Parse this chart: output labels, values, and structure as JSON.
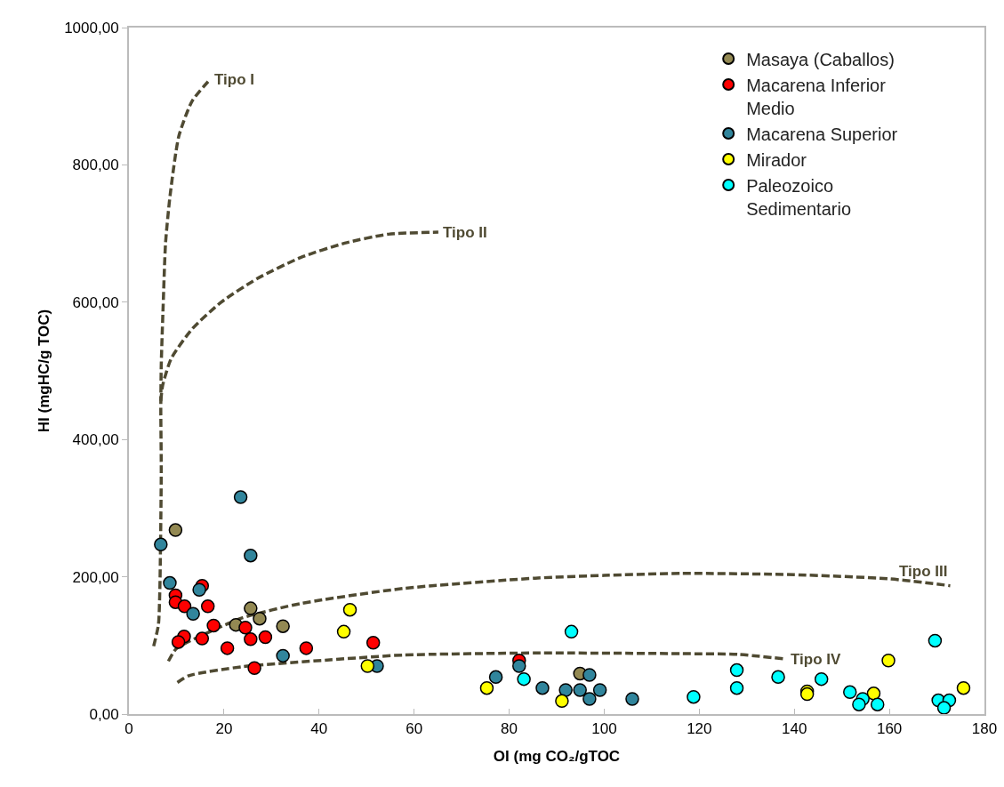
{
  "chart_data": {
    "type": "scatter",
    "xlabel": "OI (mg CO₂/gTOC",
    "ylabel": "HI (mgHC/g TOC)",
    "xlim": [
      0,
      180
    ],
    "ylim": [
      0,
      1000
    ],
    "xticks": [
      0,
      20,
      40,
      60,
      80,
      100,
      120,
      140,
      160,
      180
    ],
    "yticks": [
      {
        "value": 0,
        "label": "0,00"
      },
      {
        "value": 200,
        "label": "200,00"
      },
      {
        "value": 400,
        "label": "400,00"
      },
      {
        "value": 600,
        "label": "600,00"
      },
      {
        "value": 800,
        "label": "800,00"
      },
      {
        "value": 1000,
        "label": "1000,00"
      }
    ],
    "grid": false,
    "legend": "top right",
    "marker": "circle",
    "series": [
      {
        "name": "Masaya (Caballos)",
        "color": "#938953",
        "x": [
          9.8,
          25.6,
          27.5,
          22.5,
          32.4,
          94.9
        ],
        "values": [
          268,
          154,
          139,
          130,
          128,
          59
        ]
      },
      {
        "name": "Macarena Inferior Medio",
        "color": "#ff0000",
        "x": [
          15.4,
          9.8,
          9.8,
          11.7,
          16.6,
          17.8,
          24.5,
          28.7,
          25.6,
          11.6,
          10.4,
          15.4,
          20.7,
          37.3,
          51.4,
          26.4,
          82.1
        ],
        "values": [
          187,
          173,
          163,
          157,
          157,
          129,
          126,
          112,
          109,
          113,
          105,
          110,
          96,
          96,
          104,
          67,
          78
        ]
      },
      {
        "name": "Macarena Superior",
        "color": "#31859c",
        "x": [
          23.5,
          6.7,
          25.6,
          8.6,
          14.8,
          13.5,
          32.4,
          52.2,
          82.1,
          77.2,
          87,
          91.9,
          94.9,
          96.9,
          99.1,
          96.9,
          105.9
        ],
        "values": [
          316,
          247,
          231,
          191,
          181,
          146,
          85,
          70,
          70,
          54,
          38,
          35,
          35,
          57,
          35,
          22,
          22
        ]
      },
      {
        "name": "Mirador",
        "color": "#ffff00",
        "x": [
          46.5,
          45.2,
          50.2,
          75.3,
          91.1,
          142.7,
          142.7,
          159.8,
          156.7,
          175.6
        ],
        "values": [
          152,
          120,
          70,
          38,
          19,
          33,
          29,
          78,
          30,
          38
        ]
      },
      {
        "name": "Paleozoico Sedimentario",
        "color": "#00ffff",
        "x": [
          93.1,
          83.1,
          118.8,
          127.9,
          127.9,
          136.6,
          145.7,
          151.7,
          154.4,
          153.6,
          157.5,
          169.6,
          170.3,
          172.6,
          171.5
        ],
        "values": [
          120,
          51,
          25,
          64,
          38,
          54,
          51,
          32,
          22,
          14,
          14,
          107,
          20,
          20,
          9
        ]
      },
      {
        "type": "line",
        "name": "Tipo I",
        "color": "#4f4a32",
        "line_style": "dashed",
        "marker": "none",
        "x": [
          5.2,
          6.2,
          6.5,
          6.8,
          6.7,
          6.8,
          7.2,
          7.7,
          8.65,
          10.5,
          13.3,
          17.0
        ],
        "values": [
          99,
          130,
          181,
          354,
          444,
          509,
          595,
          686,
          755,
          842,
          893,
          924
        ]
      },
      {
        "type": "line",
        "name": "Tipo II",
        "color": "#4f4a32",
        "line_style": "dashed",
        "marker": "none",
        "x": [
          6.7,
          7.1,
          8.9,
          13.3,
          19.4,
          26.9,
          36.1,
          45.4,
          54.6,
          65.1
        ],
        "values": [
          456,
          479,
          518,
          561,
          600,
          634,
          665,
          686,
          699,
          702
        ]
      },
      {
        "type": "line",
        "name": "Tipo III",
        "color": "#4f4a32",
        "line_style": "dashed",
        "marker": "none",
        "x": [
          8.3,
          9.9,
          14.5,
          23.8,
          36.1,
          57.7,
          85.5,
          100,
          116.4,
          140,
          160,
          172.8
        ],
        "values": [
          77,
          95,
          112,
          140,
          161,
          183,
          198,
          202,
          205,
          203,
          197,
          187
        ]
      },
      {
        "type": "line",
        "name": "Tipo IV",
        "color": "#4f4a32",
        "line_style": "dashed",
        "marker": "none",
        "x": [
          10.2,
          12.6,
          23.8,
          42.3,
          57.7,
          85.5,
          116.4,
          128.1,
          138.3
        ],
        "values": [
          46,
          56,
          69,
          79,
          86,
          89,
          88,
          87,
          80
        ]
      }
    ]
  }
}
